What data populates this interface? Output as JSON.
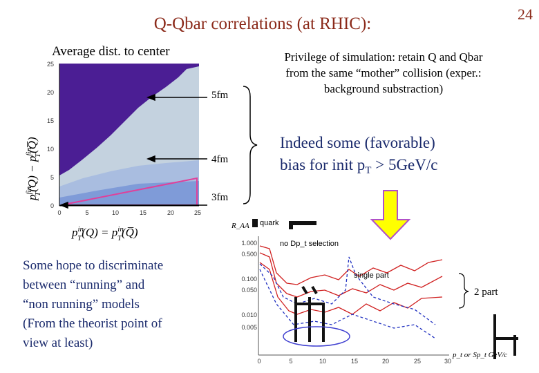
{
  "slide": {
    "title": "Q-Qbar correlations (at RHIC):",
    "page_number": "24",
    "left_plot": {
      "heading": "Average dist. to center",
      "yticks": [
        "0",
        "5",
        "10",
        "15",
        "20",
        "25"
      ],
      "xticks": [
        "0",
        "5",
        "10",
        "15",
        "20",
        "25"
      ],
      "contour_labels": [
        "5fm",
        "4fm",
        "3fm"
      ],
      "y_label": [
        "p",
        "fin",
        "T",
        "(Q) − ",
        "p",
        "fin",
        "T",
        "(Q̅)"
      ],
      "x_label": [
        "p",
        "in",
        "T",
        "(Q) = ",
        "p",
        "in",
        "T",
        "(Q̅)"
      ]
    },
    "privilege_text": [
      "Privilege of simulation: retain Q and Qbar",
      "from the same “mother” collision (exper.:",
      "background substraction)"
    ],
    "bias_text": [
      "Indeed some (favorable)",
      "bias for init p",
      "T",
      " > 5GeV/c"
    ],
    "hope_text": [
      "Some hope to discriminate",
      "between “running” and",
      "“non running” models",
      "(From the theorist point of",
      "view at least)"
    ],
    "raa_plot": {
      "y_title": "R_AA",
      "quark_label": "quark",
      "yticks": [
        "1.000",
        "0.500",
        "0.100",
        "0.050",
        "0.010",
        "0.005"
      ],
      "xticks": [
        "0",
        "5",
        "10",
        "15",
        "20",
        "25",
        "30"
      ],
      "selection_label": "no Dp_t selection",
      "single_label": "single part",
      "two_part_label": "2 part",
      "x_label": "p_t or Sp_t GeV/c"
    }
  }
}
